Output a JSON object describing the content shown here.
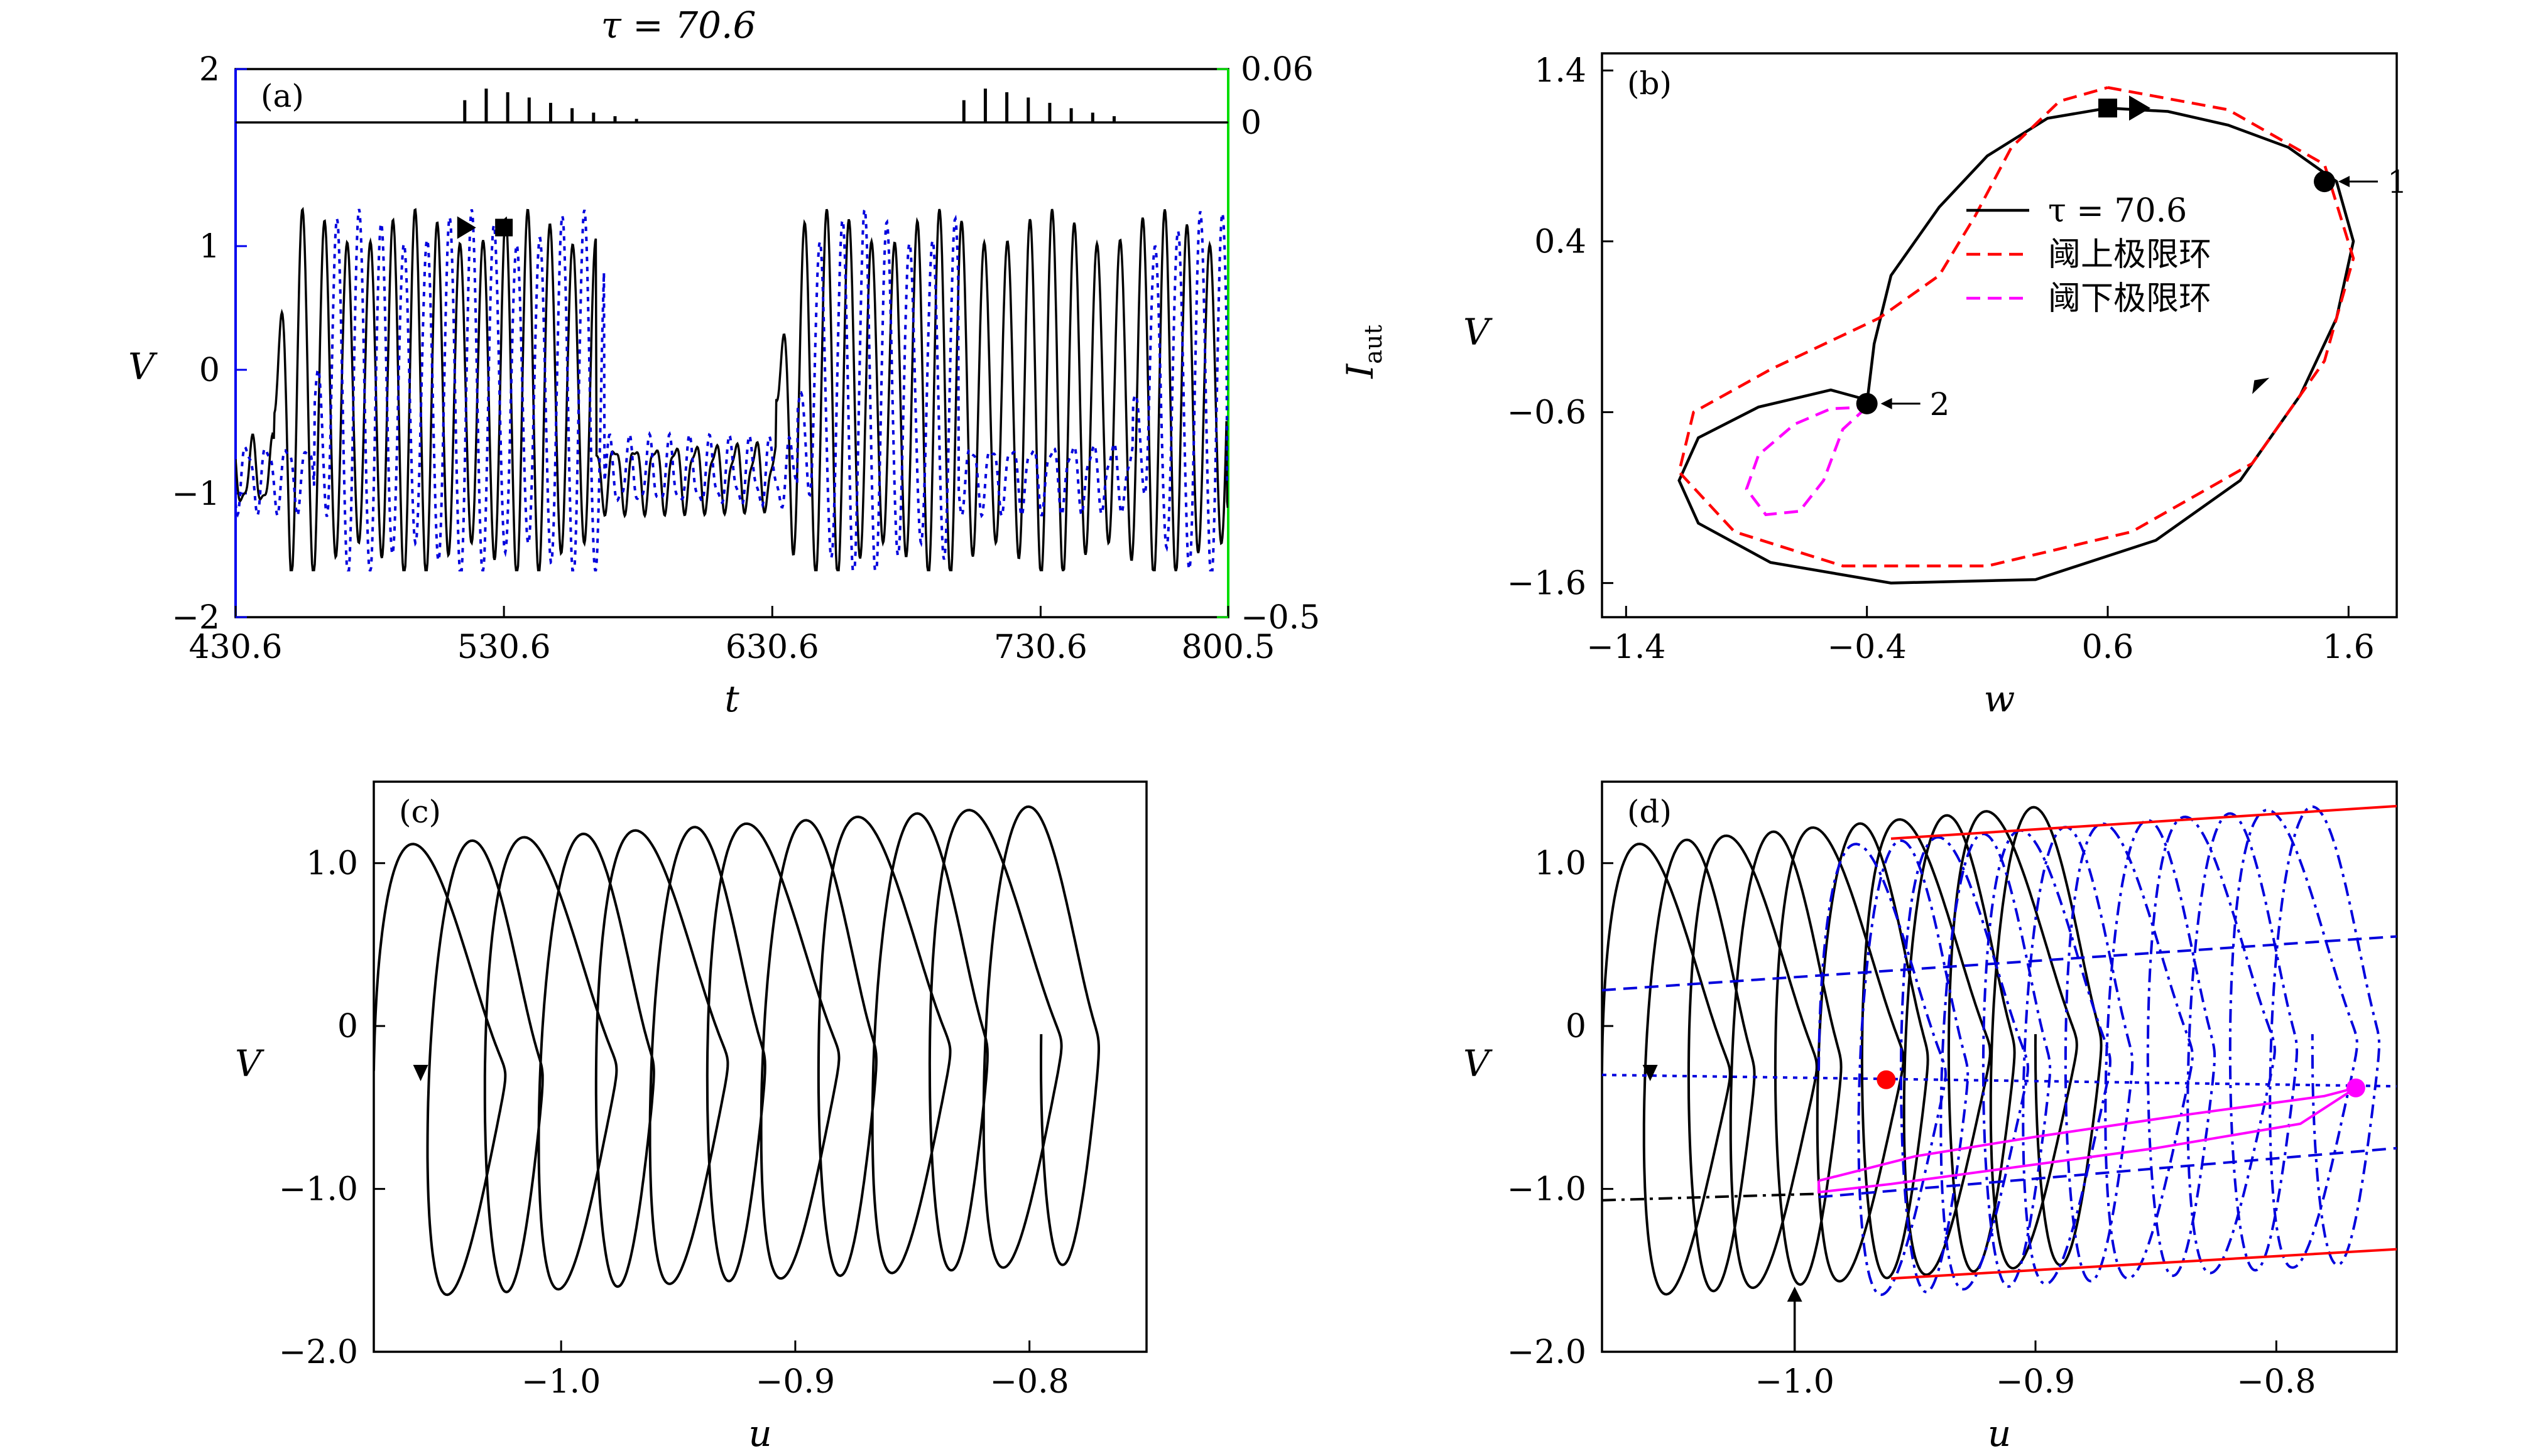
{
  "figure": {
    "panel_a_title": "τ = 70.6"
  },
  "chart_data": [
    {
      "panel": "(a)",
      "type": "line",
      "title": "τ = 70.6",
      "xlabel": "t",
      "ylabel": "V",
      "ylabel_right": "I",
      "ylabel_right_sub": "aut",
      "xlim": [
        430.6,
        800.5
      ],
      "ylim": [
        -2,
        2
      ],
      "ylim_right": [
        -0.5,
        0.06
      ],
      "xticks": [
        "430.6",
        "530.6",
        "630.6",
        "730.6",
        "800.5"
      ],
      "xtick_values": [
        430.6,
        530.6,
        630.6,
        730.6,
        800.5
      ],
      "yticks": [
        "−2",
        "−1",
        "0",
        "1",
        "2"
      ],
      "ytick_values": [
        -2,
        -1,
        0,
        1,
        2
      ],
      "yticks_right": [
        "−0.5",
        "0",
        "0.06"
      ],
      "ytick_right_values": [
        -0.5,
        0,
        0.06
      ],
      "colors": {
        "left_axis": "#0000ee",
        "right_axis": "#00dd00"
      },
      "series": [
        {
          "name": "V (solid)",
          "color": "#000000",
          "style": "solid",
          "bursts": [
            [
              445,
              565
            ],
            [
              632,
              800
            ]
          ]
        },
        {
          "name": "V (dotted)",
          "color": "#0000dd",
          "style": "dotted",
          "bursts": [
            [
              460,
              568
            ],
            [
              640,
              700
            ],
            [
              765,
              800
            ]
          ]
        },
        {
          "name": "I_aut",
          "color": "#000000",
          "style": "solid",
          "pulse_times": [
            516,
            524,
            532,
            540,
            548,
            556,
            564,
            572,
            580,
            702,
            710,
            718,
            726,
            734,
            742,
            750,
            758
          ],
          "pulse_heights": [
            0.025,
            0.038,
            0.034,
            0.028,
            0.022,
            0.016,
            0.011,
            0.007,
            0.004,
            0.025,
            0.038,
            0.034,
            0.028,
            0.022,
            0.016,
            0.011,
            0.007
          ]
        }
      ],
      "markers": [
        {
          "shape": "triangle",
          "t": 516,
          "V": 1.15
        },
        {
          "shape": "square",
          "t": 530.6,
          "V": 1.15
        }
      ]
    },
    {
      "panel": "(b)",
      "type": "line",
      "xlabel": "w",
      "ylabel": "V",
      "xlim": [
        -1.5,
        1.8
      ],
      "ylim": [
        -1.8,
        1.5
      ],
      "xticks": [
        "−1.4",
        "−0.4",
        "0.6",
        "1.6"
      ],
      "xtick_values": [
        -1.4,
        -0.4,
        0.6,
        1.6
      ],
      "yticks": [
        "−1.6",
        "−0.6",
        "0.4",
        "1.4"
      ],
      "ytick_values": [
        -1.6,
        -0.6,
        0.4,
        1.4
      ],
      "legend": {
        "placement": "center-right",
        "entries": [
          "τ = 70.6",
          "阈上极限环",
          "阈下极限环"
        ]
      },
      "series": [
        {
          "name": "τ = 70.6",
          "color": "#000000",
          "style": "solid",
          "points": [
            [
              -0.4,
              -0.55
            ],
            [
              -0.37,
              -0.2
            ],
            [
              -0.3,
              0.2
            ],
            [
              -0.1,
              0.6
            ],
            [
              0.1,
              0.9
            ],
            [
              0.35,
              1.12
            ],
            [
              0.6,
              1.18
            ],
            [
              0.85,
              1.16
            ],
            [
              1.1,
              1.08
            ],
            [
              1.35,
              0.95
            ],
            [
              1.55,
              0.75
            ],
            [
              1.62,
              0.4
            ],
            [
              1.55,
              -0.05
            ],
            [
              1.4,
              -0.5
            ],
            [
              1.15,
              -1.0
            ],
            [
              0.8,
              -1.35
            ],
            [
              0.3,
              -1.58
            ],
            [
              -0.3,
              -1.6
            ],
            [
              -0.8,
              -1.48
            ],
            [
              -1.1,
              -1.25
            ],
            [
              -1.18,
              -1.0
            ],
            [
              -1.1,
              -0.75
            ],
            [
              -0.85,
              -0.57
            ],
            [
              -0.55,
              -0.47
            ],
            [
              -0.42,
              -0.52
            ],
            [
              -0.4,
              -0.55
            ]
          ]
        },
        {
          "name": "阈上极限环",
          "color": "#ff0000",
          "style": "dashed",
          "points": [
            [
              0.6,
              1.3
            ],
            [
              1.1,
              1.17
            ],
            [
              1.5,
              0.85
            ],
            [
              1.62,
              0.3
            ],
            [
              1.5,
              -0.3
            ],
            [
              1.2,
              -0.9
            ],
            [
              0.7,
              -1.3
            ],
            [
              0.1,
              -1.5
            ],
            [
              -0.5,
              -1.5
            ],
            [
              -0.95,
              -1.3
            ],
            [
              -1.18,
              -0.95
            ],
            [
              -1.12,
              -0.6
            ],
            [
              -0.8,
              -0.35
            ],
            [
              -0.35,
              -0.05
            ],
            [
              -0.1,
              0.2
            ],
            [
              0.05,
              0.55
            ],
            [
              0.2,
              0.95
            ],
            [
              0.4,
              1.22
            ],
            [
              0.6,
              1.3
            ]
          ]
        },
        {
          "name": "阈下极限环",
          "color": "#ff00ff",
          "style": "dashed",
          "points": [
            [
              -0.4,
              -0.57
            ],
            [
              -0.5,
              -0.7
            ],
            [
              -0.58,
              -1.0
            ],
            [
              -0.68,
              -1.18
            ],
            [
              -0.82,
              -1.2
            ],
            [
              -0.9,
              -1.05
            ],
            [
              -0.85,
              -0.85
            ],
            [
              -0.7,
              -0.67
            ],
            [
              -0.55,
              -0.58
            ],
            [
              -0.4,
              -0.57
            ]
          ]
        }
      ],
      "points": [
        {
          "label": "1",
          "w": 1.5,
          "V": 0.75
        },
        {
          "label": "2",
          "w": -0.4,
          "V": -0.55
        }
      ],
      "markers": [
        {
          "shape": "square",
          "w": 0.6,
          "V": 1.18
        },
        {
          "shape": "triangle",
          "w": 0.72,
          "V": 1.18
        }
      ]
    },
    {
      "panel": "(c)",
      "type": "line",
      "xlabel": "u",
      "ylabel": "V",
      "xlim": [
        -1.08,
        -0.75
      ],
      "ylim": [
        -2.0,
        1.5
      ],
      "xticks": [
        "−1.0",
        "−0.9",
        "−0.8"
      ],
      "xtick_values": [
        -1.0,
        -0.9,
        -0.8
      ],
      "yticks": [
        "−2.0",
        "−1.0",
        "0",
        "1.0"
      ],
      "ytick_values": [
        -2.0,
        -1.0,
        0,
        1.0
      ],
      "series": [
        {
          "name": "trajectory",
          "color": "#000000",
          "style": "solid",
          "u_start": -1.06,
          "u_end": -0.775,
          "loops": 12
        }
      ]
    },
    {
      "panel": "(d)",
      "type": "line",
      "xlabel": "u",
      "ylabel": "V",
      "xlim": [
        -1.08,
        -0.75
      ],
      "ylim": [
        -2.0,
        1.5
      ],
      "xticks": [
        "−1.0",
        "−0.9",
        "−0.8"
      ],
      "xtick_values": [
        -1.0,
        -0.9,
        -0.8
      ],
      "yticks": [
        "−2.0",
        "−1.0",
        "0",
        "1.0"
      ],
      "ytick_values": [
        -2.0,
        -1.0,
        0,
        1.0
      ],
      "series": [
        {
          "name": "trajectory",
          "color": "#000000",
          "style": "solid",
          "u_start": -1.06,
          "u_end": -0.88,
          "loops": 10
        },
        {
          "name": "trajectory-dashdot",
          "color": "#0000dd",
          "style": "dashdot",
          "u_start": -0.97,
          "u_end": -0.765,
          "loops": 12
        },
        {
          "name": "upper-red",
          "color": "#ff0000",
          "style": "solid",
          "points": [
            [
              -0.96,
              1.15
            ],
            [
              -0.75,
              1.35
            ]
          ]
        },
        {
          "name": "lower-red",
          "color": "#ff0000",
          "style": "solid",
          "points": [
            [
              -0.96,
              -1.55
            ],
            [
              -0.75,
              -1.37
            ]
          ]
        },
        {
          "name": "blue-dashed-upper",
          "color": "#0000dd",
          "style": "dashed",
          "points": [
            [
              -1.08,
              0.22
            ],
            [
              -0.75,
              0.55
            ]
          ]
        },
        {
          "name": "blue-dotted",
          "color": "#0000dd",
          "style": "dotted",
          "points": [
            [
              -1.08,
              -0.3
            ],
            [
              -0.75,
              -0.37
            ]
          ]
        },
        {
          "name": "blue-dashed-lower",
          "color": "#0000dd",
          "style": "dashed",
          "points": [
            [
              -0.99,
              -1.05
            ],
            [
              -0.75,
              -0.75
            ]
          ]
        },
        {
          "name": "black-dashdot",
          "color": "#000000",
          "style": "dashdot",
          "points": [
            [
              -1.08,
              -1.07
            ],
            [
              -0.99,
              -1.03
            ]
          ]
        },
        {
          "name": "magenta-cycle",
          "color": "#ff00ff",
          "style": "solid",
          "points": [
            [
              -0.99,
              -0.95
            ],
            [
              -0.95,
              -0.8
            ],
            [
              -0.9,
              -0.68
            ],
            [
              -0.84,
              -0.55
            ],
            [
              -0.78,
              -0.43
            ],
            [
              -0.767,
              -0.38
            ],
            [
              -0.79,
              -0.6
            ],
            [
              -0.85,
              -0.75
            ],
            [
              -0.91,
              -0.87
            ],
            [
              -0.96,
              -0.97
            ],
            [
              -0.99,
              -1.02
            ],
            [
              -0.99,
              -0.95
            ]
          ]
        }
      ],
      "points": [
        {
          "color": "#ff0000",
          "u": -0.962,
          "V": -0.33
        },
        {
          "color": "#ff00ff",
          "u": -0.767,
          "V": -0.38
        }
      ]
    }
  ]
}
